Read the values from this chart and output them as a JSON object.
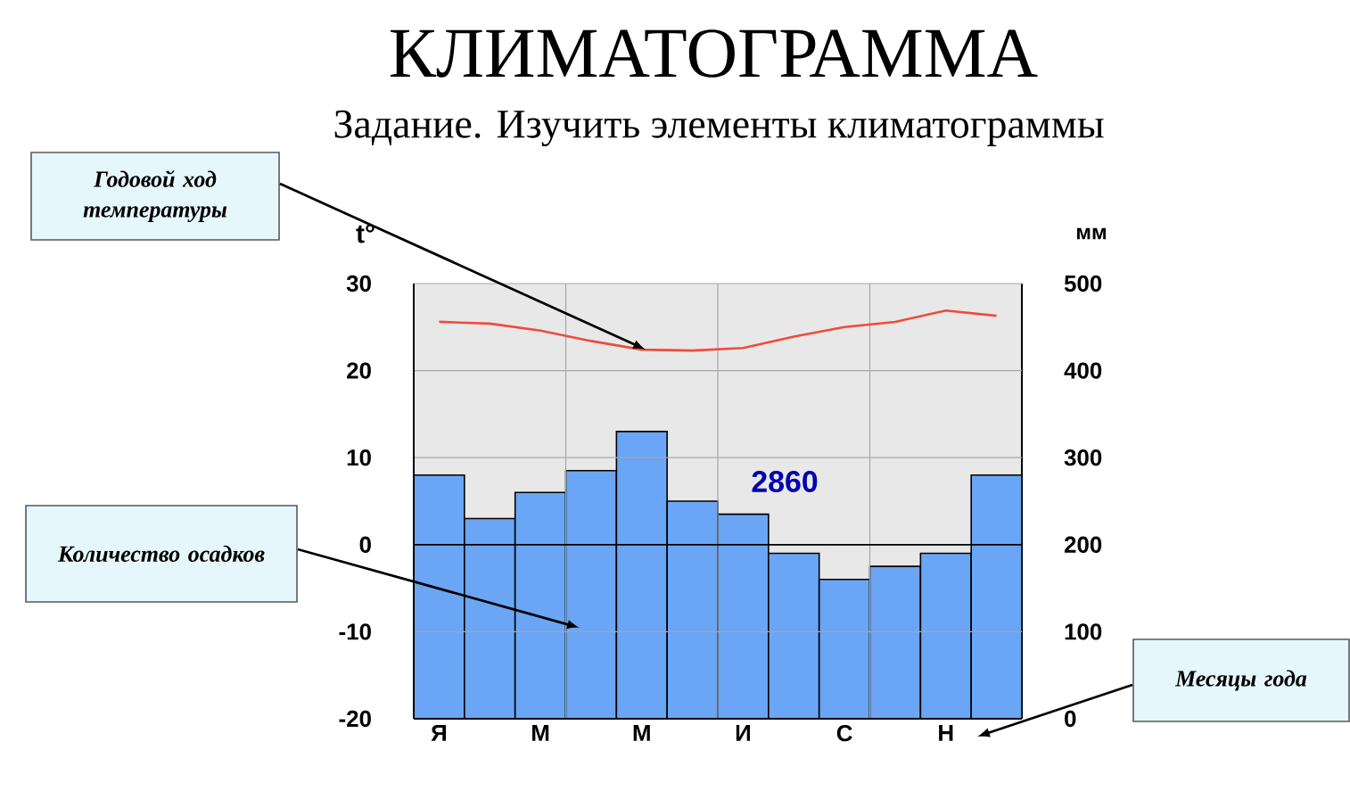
{
  "chart_data": {
    "type": "bar",
    "title": "КЛИМАТОГРАММА",
    "subtitle": "Задание. Изучить элементы климатограммы",
    "ylabel": "t°",
    "y2label": "мм",
    "categories": [
      "Я",
      null,
      "М",
      null,
      "М",
      null,
      "И",
      null,
      "С",
      null,
      "Н",
      null
    ],
    "series": [
      {
        "axis": "y2",
        "color": "#6aa6f5",
        "values": [
          280,
          230,
          260,
          285,
          330,
          250,
          235,
          190,
          160,
          175,
          190,
          280
        ]
      },
      {
        "type": "line",
        "axis": "y",
        "color": "#f04a3c",
        "values": [
          25.6,
          25.4,
          24.6,
          23.4,
          22.4,
          22.3,
          22.6,
          23.9,
          25.0,
          25.6,
          26.9,
          26.3
        ]
      }
    ],
    "ylim": [
      -20,
      30
    ],
    "yticks": [
      -20,
      -10,
      0,
      10,
      20,
      30
    ],
    "y2lim": [
      0,
      500
    ],
    "y2ticks": [
      0,
      100,
      200,
      300,
      400,
      500
    ],
    "grid": true,
    "annotations": [
      "Годовой ход температуры",
      "Количество осадков",
      "Месяцы года",
      "2860"
    ]
  }
}
